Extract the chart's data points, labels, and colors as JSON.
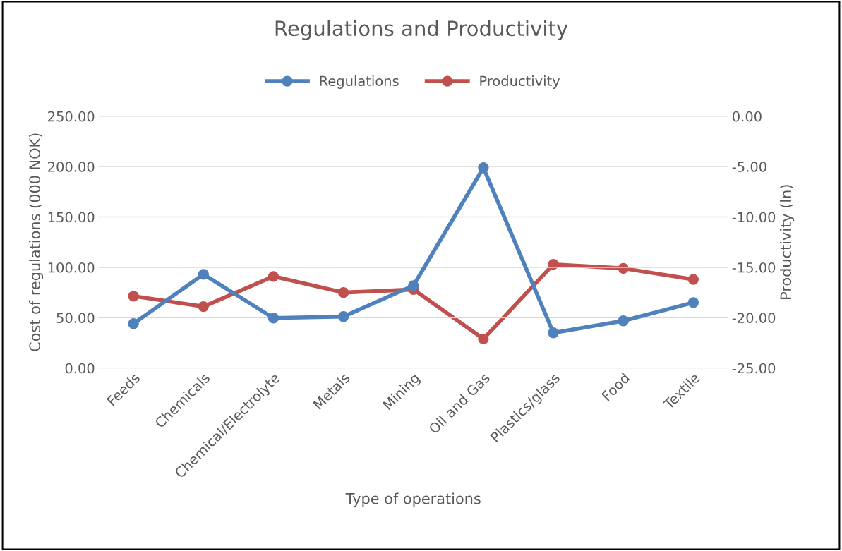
{
  "chart_data": {
    "type": "line",
    "title": "Regulations and Productivity",
    "xlabel": "Type of operations",
    "ylabel": "Cost of regulations (000 NOK)",
    "y2label": "Productivity (ln)",
    "categories": [
      "Feeds",
      "Chemicals",
      "Chemical/Electrolyte",
      "Metals",
      "Mining",
      "Oil and Gas",
      "Plastics/glass",
      "Food",
      "Textile"
    ],
    "series": [
      {
        "name": "Regulations",
        "color": "#4f81bd",
        "values": [
          44.1,
          93.1,
          49.7,
          51.1,
          81.9,
          198.9,
          35.0,
          46.9,
          65.1
        ]
      },
      {
        "name": "Productivity",
        "color": "#c0504d",
        "axis": "y2",
        "values": [
          -17.86,
          -18.9,
          -15.9,
          -17.5,
          -17.2,
          -22.1,
          -14.7,
          -15.1,
          -16.2
        ]
      }
    ],
    "ylim": [
      0,
      250
    ],
    "yticks": [
      {
        "value": 0,
        "label": "0.00"
      },
      {
        "value": 50,
        "label": "50.00"
      },
      {
        "value": 100,
        "label": "100.00"
      },
      {
        "value": 150,
        "label": "150.00"
      },
      {
        "value": 200,
        "label": "200.00"
      },
      {
        "value": 250,
        "label": "250.00"
      }
    ],
    "y2lim": [
      -25,
      0
    ],
    "y2ticks": [
      {
        "value": -25,
        "label": "-25.00"
      },
      {
        "value": -20,
        "label": "-20.00"
      },
      {
        "value": -15,
        "label": "-15.00"
      },
      {
        "value": -10,
        "label": "-10.00"
      },
      {
        "value": -5,
        "label": "-5.00"
      },
      {
        "value": 0,
        "label": "0.00"
      }
    ],
    "grid": "y",
    "legend": "top",
    "marker": "circle",
    "line_style": "solid"
  }
}
